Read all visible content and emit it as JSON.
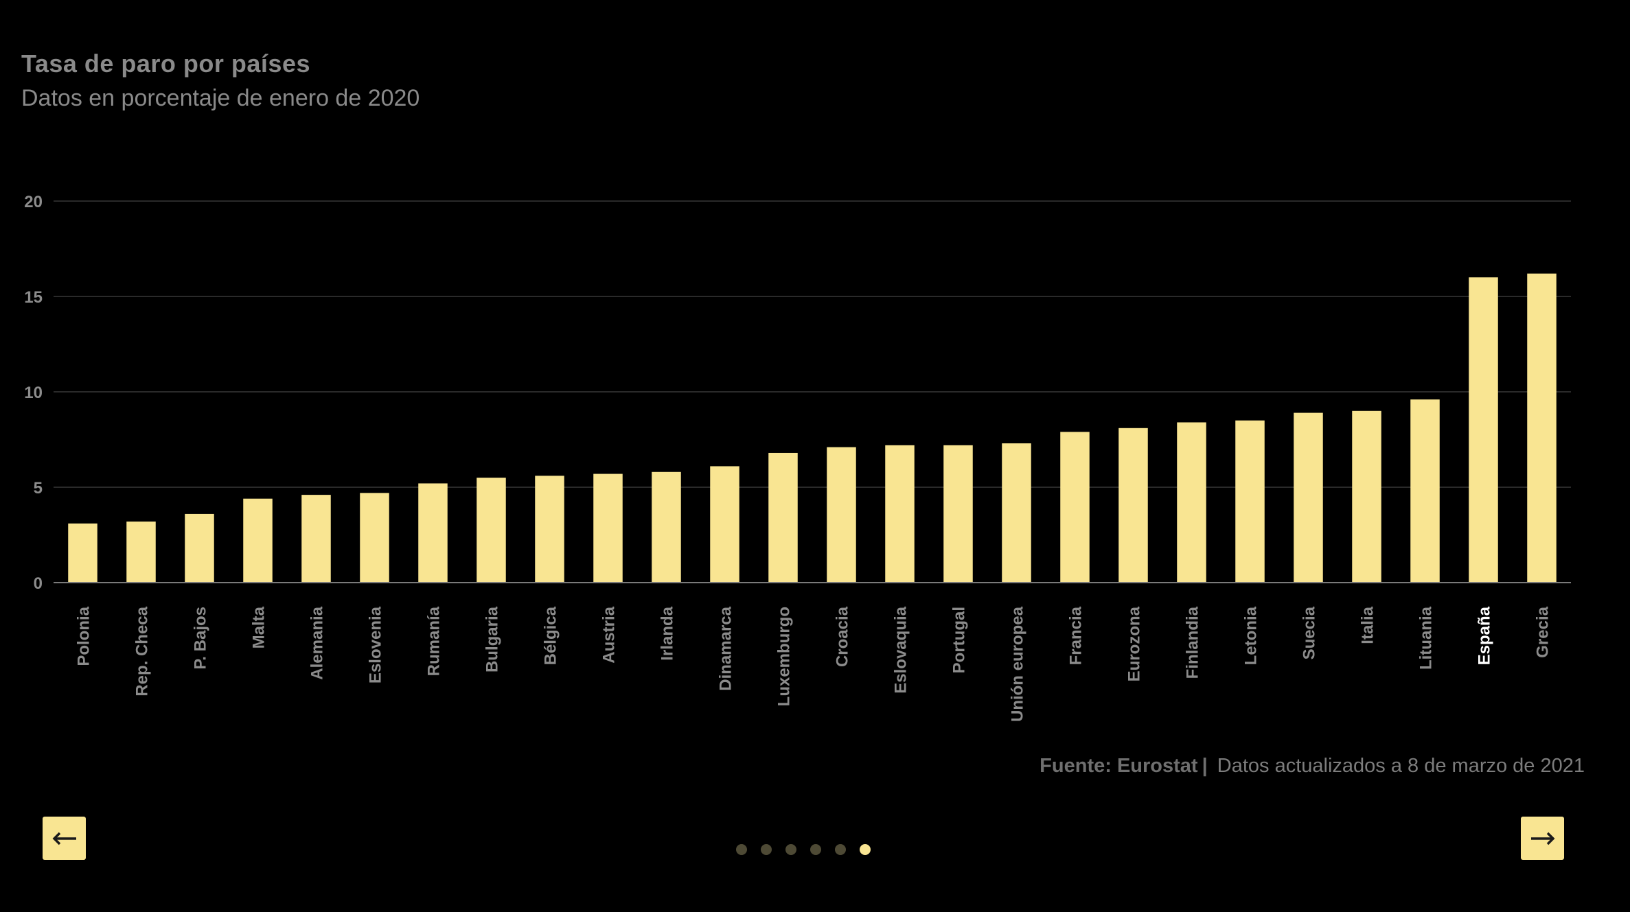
{
  "header": {
    "title": "Tasa de paro por países",
    "subtitle": "Datos en porcentaje de enero de 2020"
  },
  "chart_data": {
    "type": "bar",
    "title": "Tasa de paro por países",
    "subtitle": "Datos en porcentaje de enero de 2020",
    "xlabel": "",
    "ylabel": "",
    "ylim": [
      0,
      20
    ],
    "yticks": [
      0,
      5,
      10,
      15,
      20
    ],
    "grid": true,
    "bar_color": "#f9e592",
    "highlight_category": "España",
    "categories": [
      "Polonia",
      "Rep. Checa",
      "P. Bajos",
      "Malta",
      "Alemania",
      "Eslovenia",
      "Rumanía",
      "Bulgaria",
      "Bélgica",
      "Austria",
      "Irlanda",
      "Dinamarca",
      "Luxemburgo",
      "Croacia",
      "Eslovaquia",
      "Portugal",
      "Unión europea",
      "Francia",
      "Eurozona",
      "Finlandia",
      "Letonia",
      "Suecia",
      "Italia",
      "Lituania",
      "España",
      "Grecia"
    ],
    "values": [
      3.1,
      3.2,
      3.6,
      4.4,
      4.6,
      4.7,
      5.2,
      5.5,
      5.6,
      5.7,
      5.8,
      6.1,
      6.8,
      7.1,
      7.2,
      7.2,
      7.3,
      7.9,
      8.1,
      8.4,
      8.5,
      8.9,
      9.0,
      9.6,
      16.0,
      16.2
    ]
  },
  "footer": {
    "source_label": "Fuente: Eurostat",
    "separator": "|",
    "updated": "Datos actualizados a 8 de marzo de 2021"
  },
  "navigation": {
    "prev_icon": "arrow-left-icon",
    "next_icon": "arrow-right-icon",
    "dots_count": 6,
    "active_dot": 6
  },
  "colors": {
    "background": "#000000",
    "accent": "#f9e592",
    "dot_inactive": "#4e4a35"
  }
}
